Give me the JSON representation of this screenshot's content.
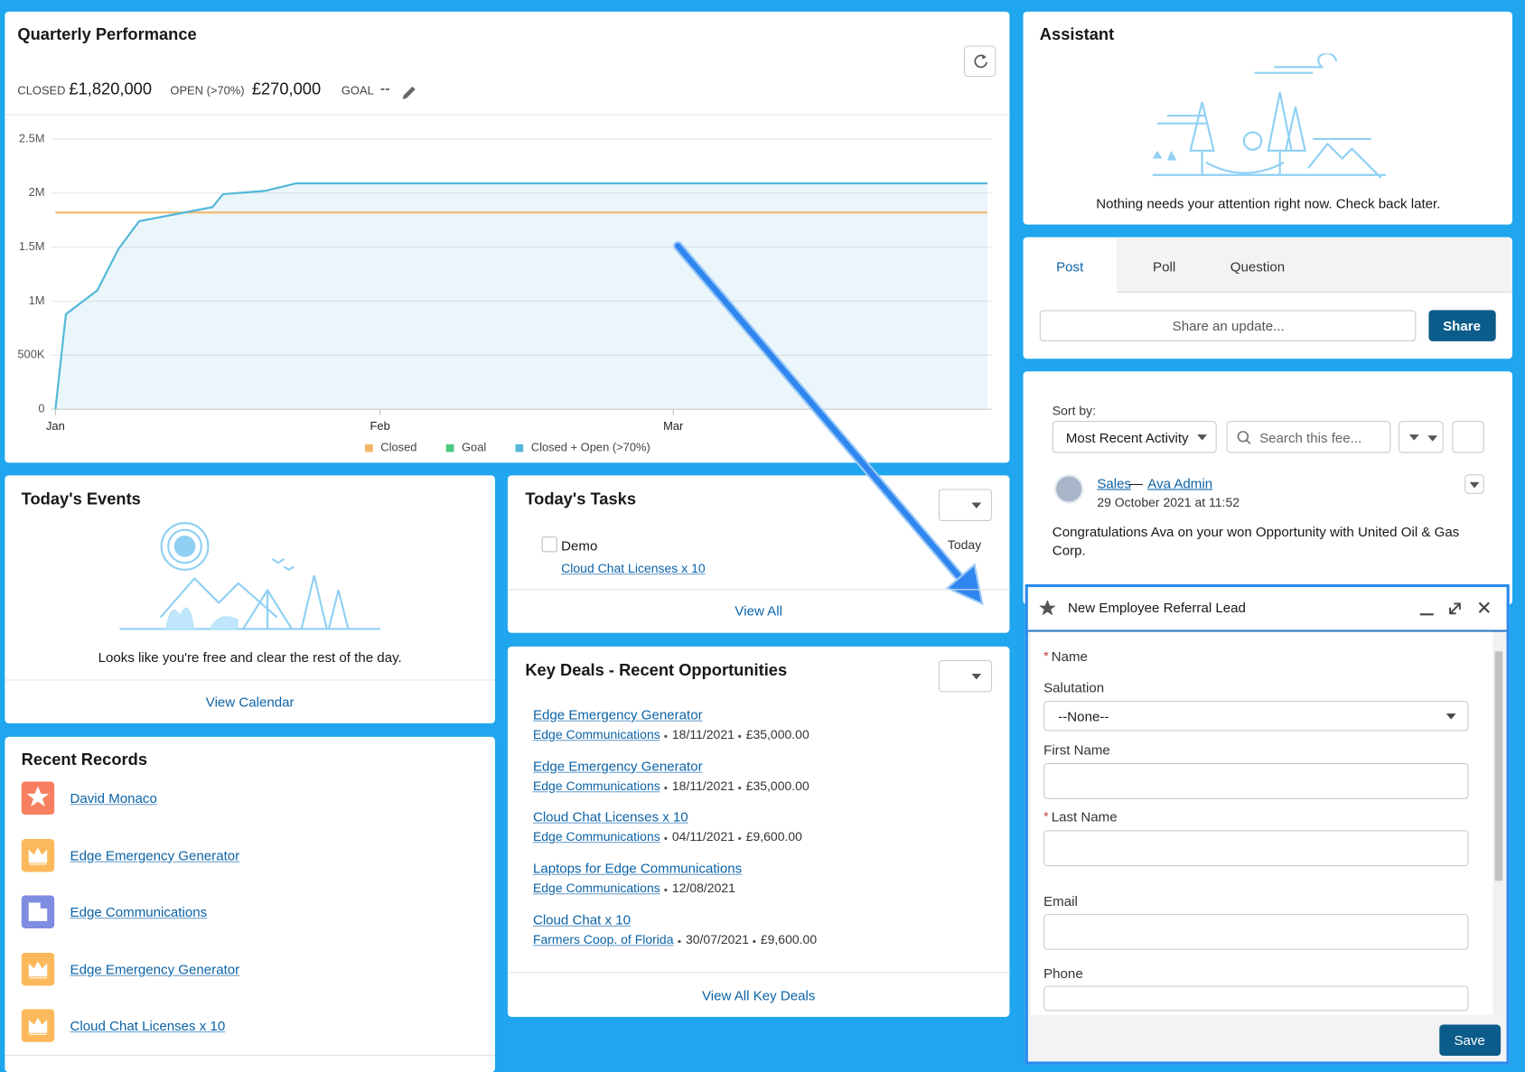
{
  "quarterly_performance": {
    "title": "Quarterly Performance",
    "closed_label": "CLOSED",
    "closed_value": "£1,820,000",
    "open_label": "OPEN (>70%)",
    "open_value": "£270,000",
    "goal_label": "GOAL",
    "goal_value": "--"
  },
  "chart_data": {
    "type": "line",
    "xlim": [
      0,
      90
    ],
    "xticks": [
      {
        "value": 0,
        "label": "Jan"
      },
      {
        "value": 31,
        "label": "Feb"
      },
      {
        "value": 59,
        "label": "Mar"
      }
    ],
    "ylim": [
      0,
      2500000
    ],
    "yticks": [
      0,
      {
        "value": 500000,
        "label": "500K"
      },
      {
        "value": 1000000,
        "label": "1M"
      },
      {
        "value": 1500000,
        "label": "1.5M"
      },
      {
        "value": 2000000,
        "label": "2M"
      },
      {
        "value": 2500000,
        "label": "2.5M"
      }
    ],
    "grid": true,
    "legend": "bottom",
    "series": [
      {
        "name": "Closed",
        "color": "#f4b66a",
        "x": [
          0,
          89
        ],
        "values": [
          1820000,
          1820000
        ]
      },
      {
        "name": "Goal",
        "color": "#4bca81",
        "x": [],
        "values": []
      },
      {
        "name": "Closed + Open (>70%)",
        "color": "#52b7d8",
        "fill": true,
        "x": [
          0,
          1,
          4,
          6,
          8,
          15,
          16,
          20,
          23,
          89
        ],
        "values": [
          0,
          880000,
          1100000,
          1480000,
          1740000,
          1870000,
          1990000,
          2020000,
          2090000,
          2090000
        ]
      }
    ]
  },
  "assistant": {
    "title": "Assistant",
    "message": "Nothing needs your attention right now. Check back later."
  },
  "publisher": {
    "tabs": [
      "Post",
      "Poll",
      "Question"
    ],
    "placeholder": "Share an update...",
    "button": "Share"
  },
  "feed": {
    "sort_label": "Sort by:",
    "sort_value": "Most Recent Activity",
    "search_placeholder": "Search this fee...",
    "post": {
      "group": "Sales",
      "separator": "—",
      "author": "Ava Admin",
      "date": "29 October 2021 at 11:52",
      "body": "Congratulations Ava on your won Opportunity with United Oil & Gas Corp."
    }
  },
  "events": {
    "title": "Today's Events",
    "message": "Looks like you're free and clear the rest of the day.",
    "link": "View Calendar"
  },
  "tasks": {
    "title": "Today's Tasks",
    "items": [
      {
        "subject": "Demo",
        "related": "Cloud Chat Licenses x 10",
        "due": "Today"
      }
    ],
    "link": "View All"
  },
  "key_deals": {
    "title": "Key Deals - Recent Opportunities",
    "link": "View All Key Deals",
    "deals": [
      {
        "name": "Edge Emergency Generator",
        "account": "Edge Communications",
        "date": "18/11/2021",
        "amount": "£35,000.00"
      },
      {
        "name": "Edge Emergency Generator",
        "account": "Edge Communications",
        "date": "18/11/2021",
        "amount": "£35,000.00"
      },
      {
        "name": "Cloud Chat Licenses x 10",
        "account": "Edge Communications",
        "date": "04/11/2021",
        "amount": "£9,600.00"
      },
      {
        "name": "Laptops for Edge Communications",
        "account": "Edge Communications",
        "date": "12/08/2021"
      },
      {
        "name": "Cloud Chat x 10",
        "account": "Farmers Coop. of Florida",
        "date": "30/07/2021",
        "amount": "£9,600.00"
      }
    ]
  },
  "recent_records": {
    "title": "Recent Records",
    "items": [
      {
        "name": "David Monaco",
        "icon_color": "#f77e5e"
      },
      {
        "name": "Edge Emergency Generator",
        "icon_color": "#fcb95b"
      },
      {
        "name": "Edge Communications",
        "icon_color": "#7f8de1"
      },
      {
        "name": "Edge Emergency Generator",
        "icon_color": "#fcb95b"
      },
      {
        "name": "Cloud Chat Licenses x 10",
        "icon_color": "#fcb95b"
      }
    ]
  },
  "docked_form": {
    "title": "New Employee Referral Lead",
    "required_marker": "*",
    "save": "Save",
    "fields": [
      {
        "label": "Name",
        "required": true
      },
      {
        "label": "Salutation",
        "value": "--None--"
      },
      {
        "label": "First Name"
      },
      {
        "label": "Last Name",
        "required": true
      },
      {
        "label": "Email"
      },
      {
        "label": "Phone"
      }
    ]
  }
}
